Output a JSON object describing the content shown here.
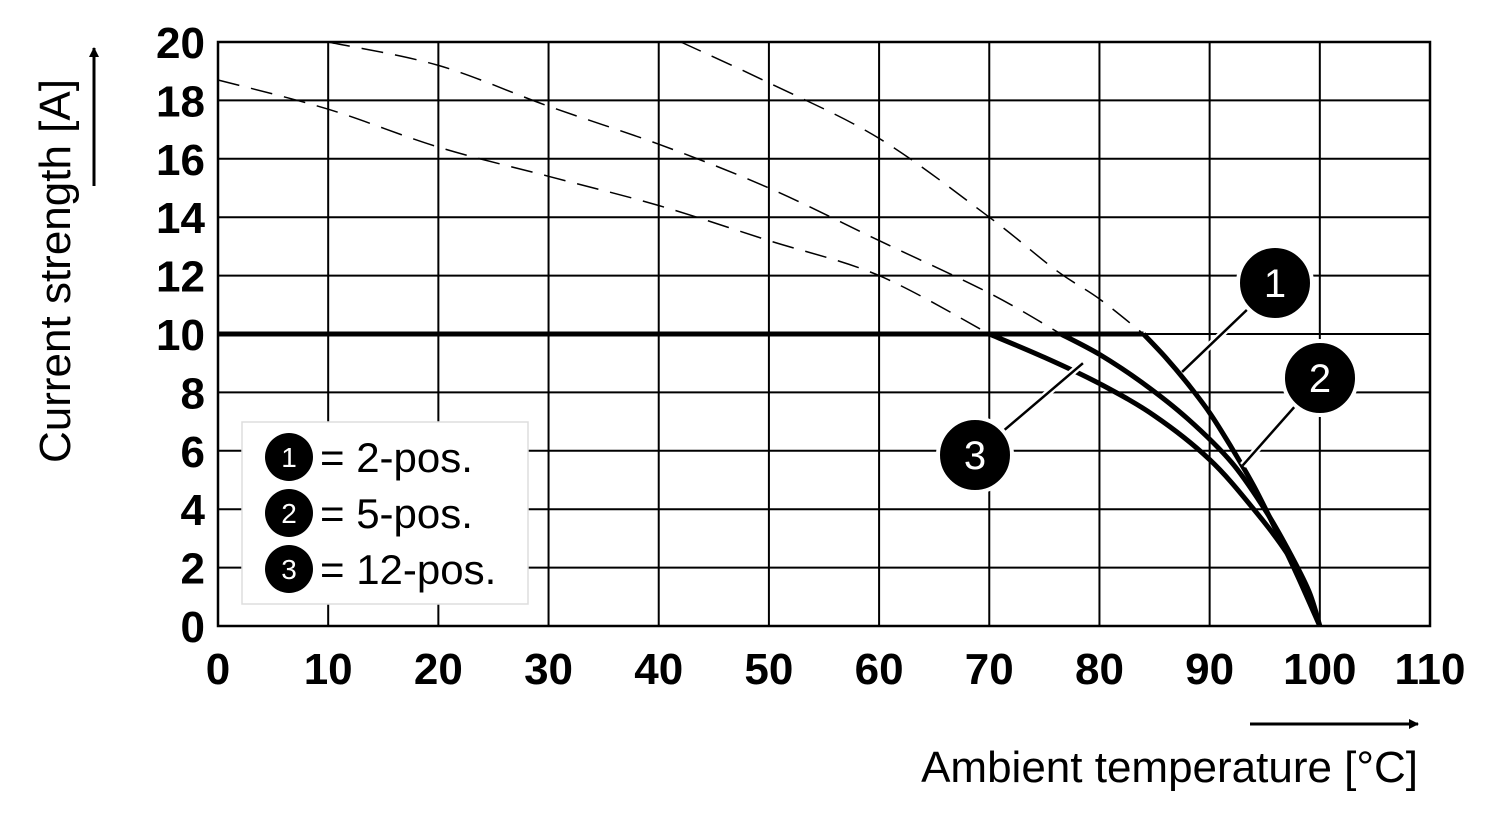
{
  "chart_data": {
    "type": "line",
    "xlabel": "Ambient temperature [°C]",
    "ylabel": "Current strength [A]",
    "xlim": [
      0,
      110
    ],
    "ylim": [
      0,
      20
    ],
    "x_ticks": [
      0,
      10,
      20,
      30,
      40,
      50,
      60,
      70,
      80,
      90,
      100,
      110
    ],
    "y_ticks": [
      0,
      2,
      4,
      6,
      8,
      10,
      12,
      14,
      16,
      18,
      20
    ],
    "grid": true,
    "plateau": 10,
    "series": [
      {
        "marker": "1",
        "name": "2-pos.",
        "derating": [
          [
            84,
            10
          ],
          [
            86,
            9.2
          ],
          [
            88,
            8.3
          ],
          [
            90,
            7.3
          ],
          [
            92,
            6.1
          ],
          [
            94,
            4.8
          ],
          [
            96,
            3.3
          ],
          [
            98,
            1.7
          ],
          [
            100,
            0
          ]
        ],
        "dashed": [
          [
            42,
            20
          ],
          [
            50,
            18.6
          ],
          [
            60,
            16.7
          ],
          [
            70,
            14.0
          ],
          [
            76,
            12.2
          ],
          [
            80,
            11.2
          ],
          [
            84,
            10
          ]
        ]
      },
      {
        "marker": "2",
        "name": "5-pos.",
        "derating": [
          [
            76.5,
            10
          ],
          [
            80,
            9.3
          ],
          [
            84,
            8.3
          ],
          [
            88,
            7.1
          ],
          [
            92,
            5.6
          ],
          [
            95,
            4.0
          ],
          [
            97,
            2.7
          ],
          [
            99,
            1.2
          ],
          [
            100,
            0
          ]
        ],
        "dashed": [
          [
            10,
            20
          ],
          [
            20,
            19.2
          ],
          [
            30,
            17.8
          ],
          [
            40,
            16.5
          ],
          [
            50,
            15.0
          ],
          [
            60,
            13.2
          ],
          [
            70,
            11.4
          ],
          [
            76.5,
            10
          ]
        ]
      },
      {
        "marker": "3",
        "name": "12-pos.",
        "derating": [
          [
            70,
            10
          ],
          [
            75,
            9.2
          ],
          [
            80,
            8.3
          ],
          [
            85,
            7.2
          ],
          [
            90,
            5.7
          ],
          [
            94,
            4.0
          ],
          [
            97,
            2.5
          ],
          [
            99,
            1.1
          ],
          [
            100,
            0
          ]
        ],
        "dashed": [
          [
            0,
            18.7
          ],
          [
            10,
            17.7
          ],
          [
            20,
            16.4
          ],
          [
            30,
            15.4
          ],
          [
            40,
            14.4
          ],
          [
            50,
            13.2
          ],
          [
            60,
            12.0
          ],
          [
            70,
            10
          ]
        ]
      }
    ],
    "legend": {
      "position": "bottom-left",
      "entries": [
        {
          "marker": "1",
          "text": "= 2-pos."
        },
        {
          "marker": "2",
          "text": "= 5-pos."
        },
        {
          "marker": "3",
          "text": "= 12-pos."
        }
      ]
    }
  }
}
